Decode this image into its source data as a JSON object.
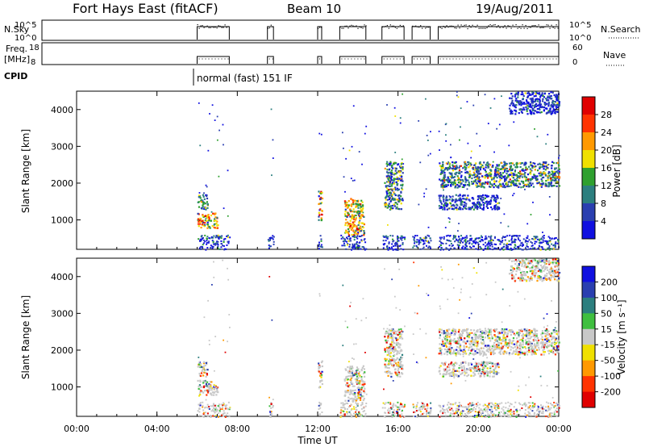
{
  "header": {
    "station": "Fort Hays East (fitACF)",
    "beam": "Beam 10",
    "date": "19/Aug/2011"
  },
  "param_panels": {
    "nsky_label": "N.Sky",
    "nsky_ticks": [
      "10^5",
      "10^0"
    ],
    "nsearch_label": "N.Search",
    "nsearch_ticks": [
      "10^5",
      "10^0"
    ],
    "freq_label": "Freq.",
    "freq_unit": "[MHz]",
    "freq_ticks": [
      "18",
      "8"
    ],
    "nave_label": "Nave",
    "nave_ticks": [
      "60",
      "0"
    ],
    "cpid_label": "CPID",
    "cpid_mode": "normal (fast) 151 IF"
  },
  "chart_data": [
    {
      "type": "heatmap",
      "name": "power",
      "ylabel": "Slant Range [km]",
      "yticks": [
        "1000",
        "2000",
        "3000",
        "4000"
      ],
      "ylim": [
        200,
        4500
      ],
      "xlim": [
        0,
        24
      ],
      "cbar_label": "Power [dB]",
      "cbar_ticks": [
        "4",
        "8",
        "12",
        "16",
        "20",
        "24",
        "28"
      ],
      "cbar_colors": [
        "#1010e0",
        "#2a3fb0",
        "#2c7f7f",
        "#2fa02f",
        "#f0e000",
        "#ff9900",
        "#ff3300",
        "#e00000"
      ],
      "active_intervals": [
        [
          6.0,
          7.6
        ],
        [
          9.5,
          9.8
        ],
        [
          12.0,
          12.2
        ],
        [
          13.1,
          14.4
        ],
        [
          15.2,
          16.3
        ],
        [
          16.7,
          17.6
        ],
        [
          18.0,
          24.0
        ]
      ],
      "regions": [
        {
          "t0": 6.0,
          "t1": 7.0,
          "r0": 800,
          "r1": 1200,
          "level": "high"
        },
        {
          "t0": 6.0,
          "t1": 6.5,
          "r0": 1300,
          "r1": 1700,
          "level": "mid"
        },
        {
          "t0": 12.0,
          "t1": 12.2,
          "r0": 1000,
          "r1": 1800,
          "level": "high"
        },
        {
          "t0": 13.3,
          "t1": 14.3,
          "r0": 600,
          "r1": 1600,
          "level": "high"
        },
        {
          "t0": 15.3,
          "t1": 16.2,
          "r0": 1300,
          "r1": 2600,
          "level": "mid"
        },
        {
          "t0": 18.0,
          "t1": 24.0,
          "r0": 1900,
          "r1": 2600,
          "level": "mid"
        },
        {
          "t0": 18.0,
          "t1": 21.0,
          "r0": 1300,
          "r1": 1700,
          "level": "low"
        },
        {
          "t0": 21.5,
          "t1": 24.0,
          "r0": 3900,
          "r1": 4500,
          "level": "low"
        }
      ]
    },
    {
      "type": "heatmap",
      "name": "velocity",
      "ylabel": "Slant Range [km]",
      "yticks": [
        "1000",
        "2000",
        "3000",
        "4000"
      ],
      "ylim": [
        200,
        4500
      ],
      "xlim": [
        0,
        24
      ],
      "cbar_label": "Velocity [m s⁻¹]",
      "cbar_ticks": [
        "200",
        "100",
        "50",
        "15",
        "-15",
        "-50",
        "-100",
        "-200"
      ],
      "cbar_colors": [
        "#1010e0",
        "#2a3fb0",
        "#2c7f7f",
        "#3fbf3f",
        "#c8c8c8",
        "#f0e000",
        "#ff9900",
        "#ff3300",
        "#e00000"
      ],
      "xticks": [
        "00:00",
        "04:00",
        "08:00",
        "12:00",
        "16:00",
        "20:00",
        "00:00"
      ],
      "xlabel": "Time UT"
    }
  ]
}
